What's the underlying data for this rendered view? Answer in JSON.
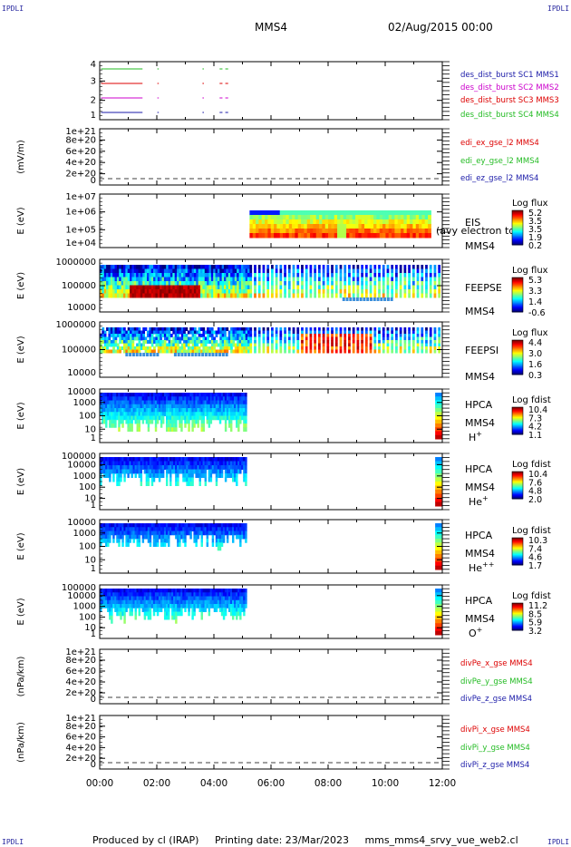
{
  "corners": {
    "tl": "IPDLI",
    "tr": "IPDLI",
    "bl": "IPDLI",
    "br": "IPDLI"
  },
  "header": {
    "spacecraft": "MMS4",
    "date": "02/Aug/2015 00:00"
  },
  "footer": {
    "produced": "Produced by cl (IRAP)",
    "printing": "Printing date: 23/Mar/2023",
    "file": "mms_mms4_srvy_vue_web2.cl"
  },
  "colors": {
    "c1": "#1a1aa8",
    "c2": "#cc00cc",
    "c3": "#dd0000",
    "c4": "#22bb22"
  },
  "time_axis": [
    "00:00",
    "02:00",
    "04:00",
    "06:00",
    "08:00",
    "10:00",
    "12:00"
  ],
  "chart_data": [
    {
      "id": "burst",
      "type": "line",
      "ylabel": "",
      "yticks": [
        "4",
        "3",
        "2",
        "1"
      ],
      "legend": [
        {
          "label": "des_dist_burst SC1 MMS1",
          "color": "#1a1aa8"
        },
        {
          "label": "des_dist_burst SC2 MMS2",
          "color": "#cc00cc"
        },
        {
          "label": "des_dist_burst SC3 MMS3",
          "color": "#dd0000"
        },
        {
          "label": "des_dist_burst SC4 MMS4",
          "color": "#22bb22"
        }
      ]
    },
    {
      "id": "edi",
      "type": "line",
      "ylabel": "(mV/m)",
      "yticks": [
        "1e+21",
        "8e+20",
        "6e+20",
        "4e+20",
        "2e+20",
        "0"
      ],
      "legend": [
        {
          "label": "edi_ex_gse_l2 MMS4",
          "color": "#dd0000"
        },
        {
          "label": "edi_ey_gse_l2 MMS4",
          "color": "#22bb22"
        },
        {
          "label": "edi_ez_gse_l2 MMS4",
          "color": "#1a1aa8"
        }
      ]
    },
    {
      "id": "eis",
      "type": "heatmap",
      "ylabel": "E (eV)",
      "yticks": [
        "1e+07",
        "1e+06",
        "1e+05",
        "1e+04"
      ],
      "side": [
        "EIS",
        "MMS4"
      ],
      "overlay": "(avy electron td",
      "cbar_title": "Log flux",
      "cbar": [
        "5.2",
        "3.5",
        "3.5",
        "1.9",
        "0.2"
      ]
    },
    {
      "id": "feepse",
      "type": "heatmap",
      "ylabel": "E (eV)",
      "yticks": [
        "1000000",
        "100000",
        "10000"
      ],
      "side": [
        "FEEPSE",
        "MMS4"
      ],
      "cbar_title": "Log flux",
      "cbar": [
        "5.3",
        "3.3",
        "1.4",
        "-0.6"
      ]
    },
    {
      "id": "feepsi",
      "type": "heatmap",
      "ylabel": "E (eV)",
      "yticks": [
        "1000000",
        "100000",
        "10000"
      ],
      "side": [
        "FEEPSI",
        "MMS4"
      ],
      "cbar_title": "Log flux",
      "cbar": [
        "4.4",
        "3.0",
        "1.6",
        "0.3"
      ]
    },
    {
      "id": "hpca_h",
      "type": "heatmap",
      "ylabel": "E (eV)",
      "yticks": [
        "10000",
        "1000",
        "100",
        "10",
        "1"
      ],
      "side": [
        "HPCA",
        "MMS4"
      ],
      "species": "H",
      "sup": "+",
      "cbar_title": "Log fdist",
      "cbar": [
        "10.4",
        "7.3",
        "4.2",
        "1.1"
      ]
    },
    {
      "id": "hpca_he",
      "type": "heatmap",
      "ylabel": "E (eV)",
      "yticks": [
        "100000",
        "10000",
        "1000",
        "100",
        "10",
        "1"
      ],
      "side": [
        "HPCA",
        "MMS4"
      ],
      "species": "He",
      "sup": "+",
      "cbar_title": "Log fdist",
      "cbar": [
        "10.4",
        "7.6",
        "4.8",
        "2.0"
      ]
    },
    {
      "id": "hpca_hepp",
      "type": "heatmap",
      "ylabel": "E (eV)",
      "yticks": [
        "10000",
        "1000",
        "100",
        "10",
        "1"
      ],
      "side": [
        "HPCA",
        "MMS4"
      ],
      "species": "He",
      "sup": "++",
      "cbar_title": "Log fdist",
      "cbar": [
        "10.3",
        "7.4",
        "4.6",
        "1.7"
      ]
    },
    {
      "id": "hpca_o",
      "type": "heatmap",
      "ylabel": "E (eV)",
      "yticks": [
        "100000",
        "10000",
        "1000",
        "100",
        "10",
        "1"
      ],
      "side": [
        "HPCA",
        "MMS4"
      ],
      "species": "O",
      "sup": "+",
      "cbar_title": "Log fdist",
      "cbar": [
        "11.2",
        "8.5",
        "5.9",
        "3.2"
      ]
    },
    {
      "id": "divpe",
      "type": "line",
      "ylabel": "(nPa/km)",
      "yticks": [
        "1e+21",
        "8e+20",
        "6e+20",
        "4e+20",
        "2e+20",
        "0"
      ],
      "legend": [
        {
          "label": "divPe_x_gse MMS4",
          "color": "#dd0000"
        },
        {
          "label": "divPe_y_gse MMS4",
          "color": "#22bb22"
        },
        {
          "label": "divPe_z_gse MMS4",
          "color": "#1a1aa8"
        }
      ]
    },
    {
      "id": "divpi",
      "type": "line",
      "ylabel": "(nPa/km)",
      "yticks": [
        "1e+21",
        "8e+20",
        "6e+20",
        "4e+20",
        "2e+20",
        "0"
      ],
      "legend": [
        {
          "label": "divPi_x_gse MMS4",
          "color": "#dd0000"
        },
        {
          "label": "divPi_y_gse MMS4",
          "color": "#22bb22"
        },
        {
          "label": "divPi_z_gse MMS4",
          "color": "#1a1aa8"
        }
      ]
    }
  ]
}
